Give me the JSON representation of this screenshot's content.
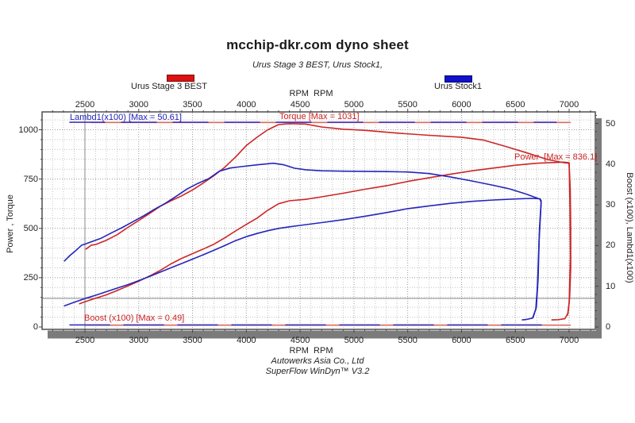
{
  "title": "mcchip-dkr.com dyno sheet",
  "subtitle": "Urus Stage 3 BEST, Urus Stock1,",
  "legend": [
    {
      "label": "Urus Stage 3 BEST",
      "color": "#dd1111",
      "border": "#7a0c0c"
    },
    {
      "label": "Urus Stock1",
      "color": "#1111cc",
      "border": "#06066a"
    }
  ],
  "axes": {
    "top_label": "RPM  RPM",
    "bottom_label": "RPM  RPM",
    "left_label": "Power , Torque",
    "right_label": "Boost (x100), Lambd1(x100)"
  },
  "annotations": {
    "lambda": "Lambd1(x100) [Max = 50.61]",
    "torque": "Torque [Max = 1031]",
    "power": "Power  [Max = 836.1]",
    "boost": "Boost (x100) [Max = 0.49]"
  },
  "footer": {
    "line1": "Autowerks Asia Co., Ltd",
    "line2": "SuperFlow WinDyn™ V3.2"
  },
  "chart_data": {
    "type": "line",
    "xlabel": "RPM",
    "x_ticks": [
      2500,
      3000,
      3500,
      4000,
      4500,
      5000,
      5500,
      6000,
      6500,
      7000
    ],
    "x_minor_step": 100,
    "x_range": [
      2100,
      7245
    ],
    "left_axis": {
      "label": "Power , Torque",
      "ticks": [
        0,
        250,
        500,
        750,
        1000
      ],
      "minor_step": 50,
      "range": [
        0,
        1090
      ]
    },
    "right_axis": {
      "label": "Boost (x100), Lambd1(x100)",
      "ticks": [
        0,
        10,
        20,
        30,
        40,
        50
      ],
      "minor_step": 2,
      "range": [
        0,
        52.8
      ]
    },
    "grid": true,
    "cursor": {
      "rpm": 2500,
      "left_value": 145
    },
    "series": [
      {
        "name": "Urus Stage 3 BEST - Torque (Nm)",
        "axis": "left",
        "color": "#cc2626",
        "width": 1.6,
        "points": [
          [
            2510,
            395
          ],
          [
            2560,
            415
          ],
          [
            2600,
            418
          ],
          [
            2700,
            440
          ],
          [
            2800,
            468
          ],
          [
            2900,
            505
          ],
          [
            3000,
            540
          ],
          [
            3100,
            575
          ],
          [
            3200,
            612
          ],
          [
            3300,
            640
          ],
          [
            3400,
            665
          ],
          [
            3500,
            695
          ],
          [
            3600,
            730
          ],
          [
            3700,
            768
          ],
          [
            3800,
            810
          ],
          [
            3900,
            862
          ],
          [
            4000,
            920
          ],
          [
            4100,
            962
          ],
          [
            4200,
            1000
          ],
          [
            4300,
            1026
          ],
          [
            4400,
            1031
          ],
          [
            4550,
            1029
          ],
          [
            4700,
            1014
          ],
          [
            4900,
            1003
          ],
          [
            5100,
            997
          ],
          [
            5400,
            983
          ],
          [
            5700,
            972
          ],
          [
            6000,
            962
          ],
          [
            6200,
            948
          ],
          [
            6400,
            917
          ],
          [
            6600,
            884
          ],
          [
            6800,
            849
          ],
          [
            6950,
            833
          ],
          [
            7000,
            830
          ],
          [
            7008,
            600
          ],
          [
            7012,
            350
          ],
          [
            7000,
            120
          ],
          [
            6985,
            60
          ]
        ]
      },
      {
        "name": "Urus Stage 3 BEST - Power (PS)",
        "axis": "left",
        "color": "#cc2626",
        "width": 1.6,
        "points": [
          [
            2450,
            118
          ],
          [
            2500,
            128
          ],
          [
            2600,
            146
          ],
          [
            2700,
            163
          ],
          [
            2800,
            185
          ],
          [
            2900,
            208
          ],
          [
            3000,
            232
          ],
          [
            3100,
            258
          ],
          [
            3200,
            287
          ],
          [
            3300,
            320
          ],
          [
            3400,
            348
          ],
          [
            3500,
            372
          ],
          [
            3600,
            395
          ],
          [
            3700,
            420
          ],
          [
            3800,
            452
          ],
          [
            3900,
            487
          ],
          [
            4000,
            520
          ],
          [
            4100,
            552
          ],
          [
            4200,
            592
          ],
          [
            4300,
            625
          ],
          [
            4400,
            640
          ],
          [
            4550,
            647
          ],
          [
            4700,
            660
          ],
          [
            4900,
            678
          ],
          [
            5100,
            698
          ],
          [
            5300,
            716
          ],
          [
            5500,
            738
          ],
          [
            5700,
            757
          ],
          [
            5900,
            775
          ],
          [
            6100,
            792
          ],
          [
            6300,
            806
          ],
          [
            6500,
            820
          ],
          [
            6700,
            830
          ],
          [
            6850,
            834
          ],
          [
            6950,
            836
          ],
          [
            7000,
            833
          ],
          [
            7010,
            700
          ],
          [
            7015,
            500
          ],
          [
            7015,
            300
          ],
          [
            7005,
            150
          ],
          [
            6990,
            70
          ],
          [
            6960,
            42
          ],
          [
            6900,
            37
          ],
          [
            6840,
            36
          ]
        ]
      },
      {
        "name": "Urus Stock1 - Torque (Nm)",
        "axis": "left",
        "color": "#2525bb",
        "width": 1.6,
        "points": [
          [
            2310,
            335
          ],
          [
            2360,
            362
          ],
          [
            2420,
            390
          ],
          [
            2470,
            415
          ],
          [
            2500,
            420
          ],
          [
            2550,
            430
          ],
          [
            2650,
            450
          ],
          [
            2750,
            478
          ],
          [
            2850,
            505
          ],
          [
            2950,
            535
          ],
          [
            3050,
            565
          ],
          [
            3150,
            598
          ],
          [
            3250,
            628
          ],
          [
            3350,
            663
          ],
          [
            3450,
            700
          ],
          [
            3550,
            728
          ],
          [
            3650,
            752
          ],
          [
            3750,
            790
          ],
          [
            3850,
            806
          ],
          [
            3950,
            813
          ],
          [
            4100,
            822
          ],
          [
            4250,
            830
          ],
          [
            4350,
            822
          ],
          [
            4450,
            805
          ],
          [
            4550,
            797
          ],
          [
            4700,
            792
          ],
          [
            4900,
            790
          ],
          [
            5100,
            789
          ],
          [
            5300,
            788
          ],
          [
            5500,
            786
          ],
          [
            5700,
            778
          ],
          [
            5900,
            760
          ],
          [
            6100,
            740
          ],
          [
            6300,
            718
          ],
          [
            6450,
            700
          ],
          [
            6600,
            674
          ],
          [
            6730,
            648
          ],
          [
            6740,
            630
          ],
          [
            6722,
            450
          ],
          [
            6712,
            250
          ],
          [
            6695,
            100
          ],
          [
            6665,
            48
          ]
        ]
      },
      {
        "name": "Urus Stock1 - Power (PS)",
        "axis": "left",
        "color": "#2525bb",
        "width": 1.6,
        "points": [
          [
            2310,
            107
          ],
          [
            2400,
            125
          ],
          [
            2500,
            144
          ],
          [
            2600,
            161
          ],
          [
            2700,
            179
          ],
          [
            2800,
            197
          ],
          [
            2900,
            215
          ],
          [
            3000,
            235
          ],
          [
            3100,
            256
          ],
          [
            3200,
            278
          ],
          [
            3300,
            300
          ],
          [
            3400,
            322
          ],
          [
            3500,
            344
          ],
          [
            3600,
            366
          ],
          [
            3700,
            389
          ],
          [
            3800,
            413
          ],
          [
            3900,
            438
          ],
          [
            4000,
            458
          ],
          [
            4100,
            474
          ],
          [
            4200,
            488
          ],
          [
            4300,
            500
          ],
          [
            4400,
            508
          ],
          [
            4500,
            515
          ],
          [
            4700,
            529
          ],
          [
            4900,
            544
          ],
          [
            5100,
            561
          ],
          [
            5300,
            580
          ],
          [
            5500,
            600
          ],
          [
            5700,
            614
          ],
          [
            5900,
            627
          ],
          [
            6100,
            637
          ],
          [
            6300,
            644
          ],
          [
            6500,
            649
          ],
          [
            6650,
            652
          ],
          [
            6730,
            650
          ],
          [
            6740,
            640
          ],
          [
            6725,
            500
          ],
          [
            6715,
            350
          ],
          [
            6705,
            200
          ],
          [
            6690,
            90
          ],
          [
            6660,
            45
          ],
          [
            6600,
            38
          ],
          [
            6565,
            36
          ]
        ]
      },
      {
        "name": "Urus Stage 3 BEST - Lambd1(x100), max 50.61",
        "axis": "right",
        "color": "#d86a5e",
        "width": 1.6,
        "points": [
          [
            2560,
            50.25
          ],
          [
            7010,
            50.25
          ]
        ]
      },
      {
        "name": "Urus Stock1 - Lambd1(x100)",
        "axis": "right",
        "color": "#4433bb",
        "width": 1.6,
        "dash": "44,21",
        "points": [
          [
            2360,
            50.3
          ],
          [
            6880,
            50.3
          ]
        ]
      },
      {
        "name": "Urus Stage 3 BEST - Boost (x100), max 0.49",
        "axis": "right",
        "color": "#d86a5e",
        "width": 1.6,
        "points": [
          [
            2500,
            0.45
          ],
          [
            7010,
            0.45
          ]
        ]
      },
      {
        "name": "Urus Stock1 - Boost (x100)",
        "axis": "right",
        "color": "#3333bb",
        "width": 1.6,
        "dash": "50,18",
        "points": [
          [
            2360,
            0.5
          ],
          [
            6870,
            0.5
          ]
        ]
      }
    ]
  }
}
